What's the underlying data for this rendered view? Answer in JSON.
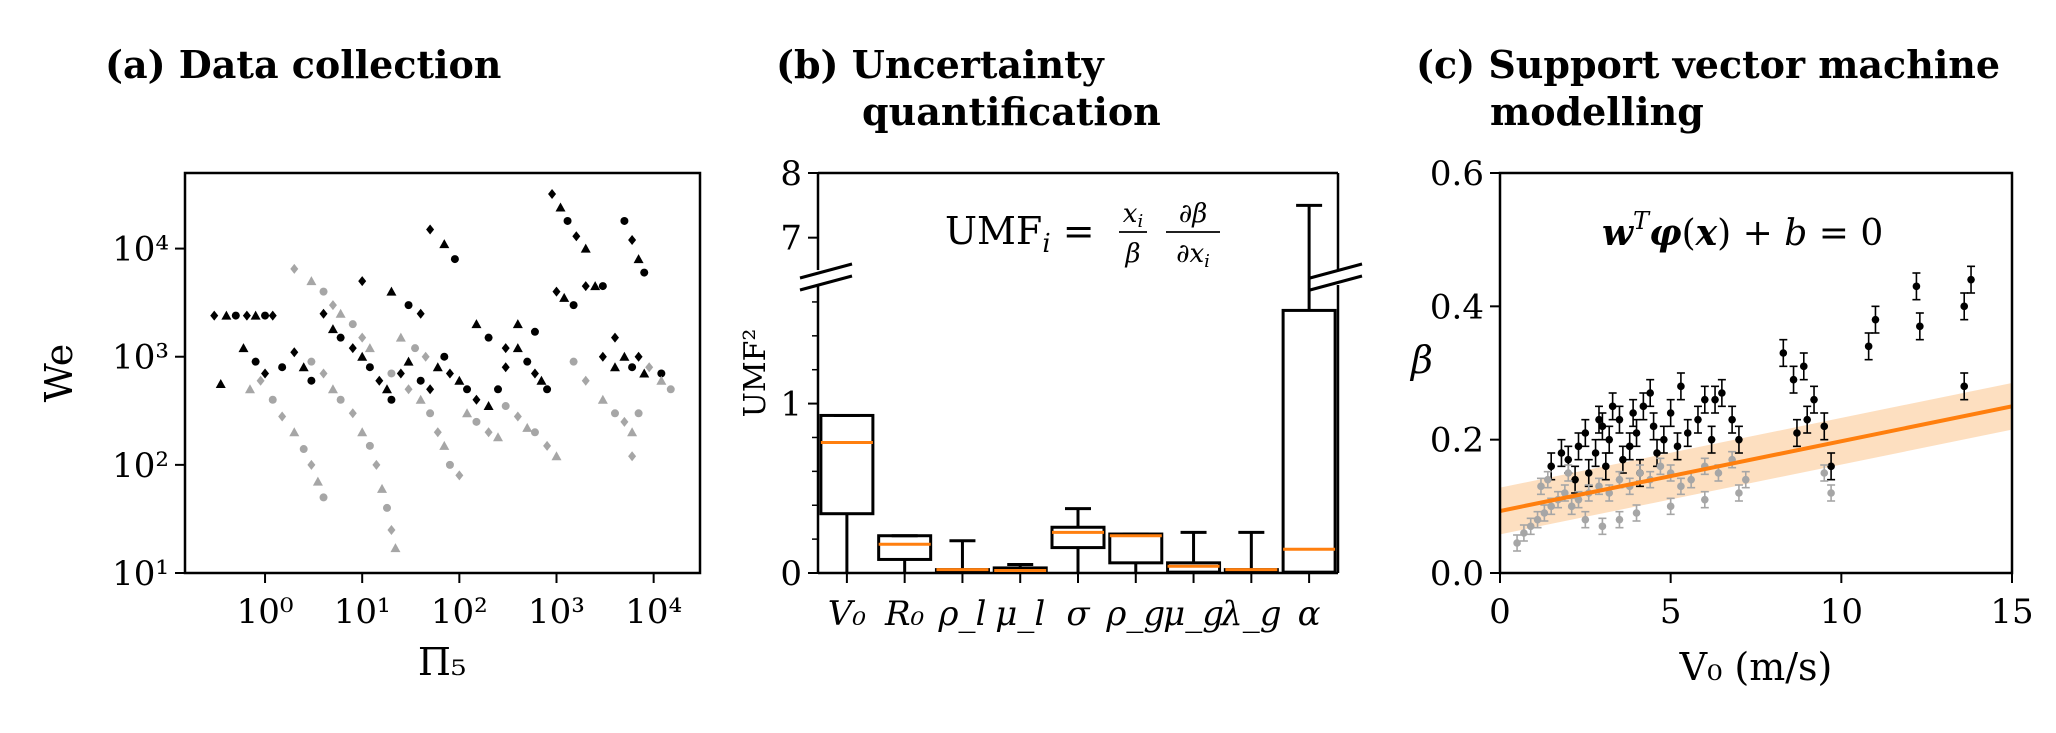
{
  "panels": {
    "a": {
      "title_line1": "(a) Data collection",
      "title_line2": ""
    },
    "b": {
      "title_line1": "(b) Uncertainty",
      "title_line2": "quantification"
    },
    "c": {
      "title_line1": "(c) Support vector machine",
      "title_line2": "modelling"
    }
  },
  "colors": {
    "black": "#000000",
    "gray": "#a6a6a6",
    "orange": "#ff7f0e",
    "band": "#fdd9b5"
  },
  "chart_data": [
    {
      "type": "scatter",
      "title": "(a) Data collection",
      "xlabel": "Π₅",
      "ylabel": "We",
      "xscale": "log",
      "yscale": "log",
      "xlim": [
        0.15,
        30000
      ],
      "ylim": [
        10,
        50000
      ],
      "xticks": [
        "10⁰",
        "10¹",
        "10²",
        "10³",
        "10⁴"
      ],
      "yticks": [
        "10¹",
        "10²",
        "10³",
        "10⁴"
      ],
      "series": [
        {
          "color": "black",
          "points": [
            [
              0.3,
              2400
            ],
            [
              0.4,
              2400
            ],
            [
              0.5,
              2400
            ],
            [
              0.65,
              2400
            ],
            [
              0.8,
              2400
            ],
            [
              1.0,
              2400
            ],
            [
              1.2,
              2400
            ],
            [
              0.6,
              1200
            ],
            [
              0.8,
              900
            ],
            [
              1.0,
              700
            ],
            [
              0.35,
              560
            ],
            [
              1.5,
              800
            ],
            [
              2.0,
              1100
            ],
            [
              2.5,
              800
            ],
            [
              3,
              600
            ],
            [
              4,
              2500
            ],
            [
              5,
              1800
            ],
            [
              6,
              1500
            ],
            [
              8,
              1200
            ],
            [
              10,
              1000
            ],
            [
              12,
              800
            ],
            [
              15,
              600
            ],
            [
              18,
              500
            ],
            [
              20,
              400
            ],
            [
              25,
              700
            ],
            [
              30,
              900
            ],
            [
              40,
              600
            ],
            [
              50,
              500
            ],
            [
              60,
              800
            ],
            [
              70,
              1000
            ],
            [
              80,
              700
            ],
            [
              100,
              600
            ],
            [
              120,
              500
            ],
            [
              150,
              400
            ],
            [
              200,
              350
            ],
            [
              250,
              500
            ],
            [
              300,
              800
            ],
            [
              400,
              1200
            ],
            [
              500,
              900
            ],
            [
              600,
              700
            ],
            [
              700,
              600
            ],
            [
              800,
              500
            ],
            [
              1000,
              4000
            ],
            [
              1200,
              3500
            ],
            [
              1500,
              3000
            ],
            [
              2000,
              4500
            ],
            [
              2500,
              4500
            ],
            [
              3000,
              4500
            ],
            [
              4000,
              1500
            ],
            [
              5000,
              1000
            ],
            [
              6000,
              800
            ],
            [
              7000,
              1000
            ],
            [
              8000,
              700
            ],
            [
              12000,
              700
            ],
            [
              50,
              15000
            ],
            [
              70,
              11000
            ],
            [
              90,
              8000
            ],
            [
              900,
              32000
            ],
            [
              1100,
              24000
            ],
            [
              1300,
              18000
            ],
            [
              1600,
              13000
            ],
            [
              2000,
              10000
            ],
            [
              5000,
              18000
            ],
            [
              6000,
              12000
            ],
            [
              7000,
              8000
            ],
            [
              8000,
              6000
            ],
            [
              10,
              5000
            ],
            [
              20,
              4000
            ],
            [
              30,
              3000
            ],
            [
              40,
              2500
            ],
            [
              150,
              2000
            ],
            [
              200,
              1500
            ],
            [
              300,
              1200
            ],
            [
              400,
              2000
            ],
            [
              600,
              1700
            ],
            [
              3000,
              1000
            ],
            [
              4000,
              800
            ]
          ]
        },
        {
          "color": "gray",
          "points": [
            [
              2,
              6500
            ],
            [
              3,
              5000
            ],
            [
              4,
              4000
            ],
            [
              5,
              3000
            ],
            [
              6,
              2500
            ],
            [
              8,
              2000
            ],
            [
              10,
              1500
            ],
            [
              12,
              1200
            ],
            [
              3,
              900
            ],
            [
              4,
              700
            ],
            [
              5,
              500
            ],
            [
              6,
              400
            ],
            [
              8,
              300
            ],
            [
              10,
              200
            ],
            [
              12,
              150
            ],
            [
              14,
              100
            ],
            [
              16,
              60
            ],
            [
              18,
              40
            ],
            [
              20,
              25
            ],
            [
              22,
              17
            ],
            [
              1.2,
              400
            ],
            [
              1.5,
              280
            ],
            [
              2,
              200
            ],
            [
              2.5,
              140
            ],
            [
              3,
              100
            ],
            [
              3.5,
              70
            ],
            [
              4,
              50
            ],
            [
              0.9,
              600
            ],
            [
              0.7,
              500
            ],
            [
              20,
              700
            ],
            [
              30,
              500
            ],
            [
              40,
              400
            ],
            [
              50,
              300
            ],
            [
              60,
              200
            ],
            [
              70,
              150
            ],
            [
              80,
              100
            ],
            [
              100,
              80
            ],
            [
              120,
              300
            ],
            [
              150,
              250
            ],
            [
              200,
              200
            ],
            [
              250,
              180
            ],
            [
              300,
              350
            ],
            [
              400,
              280
            ],
            [
              500,
              220
            ],
            [
              600,
              200
            ],
            [
              800,
              150
            ],
            [
              1000,
              120
            ],
            [
              1500,
              900
            ],
            [
              2000,
              600
            ],
            [
              3000,
              400
            ],
            [
              4000,
              300
            ],
            [
              5000,
              250
            ],
            [
              6000,
              200
            ],
            [
              7000,
              300
            ],
            [
              9000,
              800
            ],
            [
              12000,
              600
            ],
            [
              15000,
              500
            ],
            [
              6000,
              120
            ],
            [
              25,
              1500
            ],
            [
              35,
              1200
            ],
            [
              45,
              1000
            ]
          ]
        }
      ]
    },
    {
      "type": "box",
      "title": "(b) Uncertainty quantification",
      "ylabel": "UMF²",
      "annotation": "UMF_i = (x_i/β) ∂β/∂x_i",
      "yticks": [
        "0",
        "1",
        "7",
        "8"
      ],
      "categories": [
        "V₀",
        "R₀",
        "ρ_l",
        "μ_l",
        "σ",
        "ρ_g",
        "μ_g",
        "λ_g",
        "α"
      ],
      "boxes": [
        {
          "whislo": 0,
          "q1": 0.35,
          "med": 0.77,
          "q3": 0.93,
          "whishi": 0.93
        },
        {
          "whislo": 0,
          "q1": 0.08,
          "med": 0.17,
          "q3": 0.22,
          "whishi": 0.22
        },
        {
          "whislo": 0,
          "q1": 0.005,
          "med": 0.02,
          "q3": 0.02,
          "whishi": 0.19
        },
        {
          "whislo": 0,
          "q1": 0.005,
          "med": 0.015,
          "q3": 0.03,
          "whishi": 0.05
        },
        {
          "whislo": 0,
          "q1": 0.15,
          "med": 0.24,
          "q3": 0.27,
          "whishi": 0.38
        },
        {
          "whislo": 0,
          "q1": 0.06,
          "med": 0.22,
          "q3": 0.23,
          "whishi": 0.23
        },
        {
          "whislo": 0,
          "q1": 0.005,
          "med": 0.04,
          "q3": 0.06,
          "whishi": 0.24
        },
        {
          "whislo": 0,
          "q1": 0.005,
          "med": 0.02,
          "q3": 0.02,
          "whishi": 0.24
        },
        {
          "whislo": 0,
          "q1": 0.005,
          "med": 0.14,
          "q3": 1.55,
          "whishi": 7.5
        }
      ]
    },
    {
      "type": "scatter",
      "title": "(c) Support vector machine modelling",
      "xlabel": "V₀ (m/s)",
      "ylabel": "β",
      "annotation": "wᵀφ(x) + b = 0",
      "xlim": [
        0,
        15
      ],
      "ylim": [
        0,
        0.6
      ],
      "xticks": [
        "0",
        "5",
        "10",
        "15"
      ],
      "yticks": [
        "0.0",
        "0.2",
        "0.4",
        "0.6"
      ],
      "decision_line": {
        "x": [
          0,
          15
        ],
        "y": [
          0.093,
          0.25
        ],
        "band_halfwidth": 0.035
      },
      "series": [
        {
          "color": "black",
          "points": [
            [
              2,
              0.17
            ],
            [
              2.3,
              0.19
            ],
            [
              2.5,
              0.21
            ],
            [
              2.8,
              0.18
            ],
            [
              3,
              0.22
            ],
            [
              3.2,
              0.2
            ],
            [
              3.5,
              0.23
            ],
            [
              3.8,
              0.19
            ],
            [
              4,
              0.21
            ],
            [
              4.2,
              0.25
            ],
            [
              4.5,
              0.22
            ],
            [
              4.8,
              0.2
            ],
            [
              5,
              0.24
            ],
            [
              5.2,
              0.19
            ],
            [
              5.5,
              0.21
            ],
            [
              5.8,
              0.23
            ],
            [
              6,
              0.26
            ],
            [
              6.2,
              0.2
            ],
            [
              6.5,
              0.27
            ],
            [
              6.8,
              0.23
            ],
            [
              7,
              0.2
            ],
            [
              2.2,
              0.14
            ],
            [
              2.6,
              0.15
            ],
            [
              3.1,
              0.16
            ],
            [
              3.6,
              0.17
            ],
            [
              4.1,
              0.15
            ],
            [
              4.6,
              0.18
            ],
            [
              8.3,
              0.33
            ],
            [
              8.6,
              0.29
            ],
            [
              8.9,
              0.31
            ],
            [
              9,
              0.23
            ],
            [
              9.2,
              0.26
            ],
            [
              9.5,
              0.22
            ],
            [
              9.7,
              0.16
            ],
            [
              8.7,
              0.21
            ],
            [
              10.8,
              0.34
            ],
            [
              11,
              0.38
            ],
            [
              12.2,
              0.43
            ],
            [
              12.3,
              0.37
            ],
            [
              13.6,
              0.4
            ],
            [
              13.8,
              0.44
            ],
            [
              13.6,
              0.28
            ],
            [
              1.5,
              0.16
            ],
            [
              1.8,
              0.18
            ],
            [
              3.3,
              0.25
            ],
            [
              4.4,
              0.27
            ],
            [
              5.3,
              0.28
            ],
            [
              6.3,
              0.26
            ],
            [
              3.9,
              0.24
            ],
            [
              2.9,
              0.23
            ]
          ]
        },
        {
          "color": "gray",
          "points": [
            [
              0.5,
              0.045
            ],
            [
              0.7,
              0.06
            ],
            [
              0.9,
              0.07
            ],
            [
              1.1,
              0.08
            ],
            [
              1.3,
              0.09
            ],
            [
              1.5,
              0.1
            ],
            [
              1.7,
              0.11
            ],
            [
              1.9,
              0.12
            ],
            [
              2.1,
              0.1
            ],
            [
              2.3,
              0.11
            ],
            [
              2.6,
              0.12
            ],
            [
              2.9,
              0.13
            ],
            [
              3.2,
              0.12
            ],
            [
              3.5,
              0.14
            ],
            [
              3.8,
              0.13
            ],
            [
              4.1,
              0.15
            ],
            [
              4.4,
              0.14
            ],
            [
              4.7,
              0.16
            ],
            [
              5,
              0.15
            ],
            [
              5.3,
              0.13
            ],
            [
              5.6,
              0.14
            ],
            [
              6,
              0.16
            ],
            [
              6.4,
              0.15
            ],
            [
              6.8,
              0.17
            ],
            [
              7.2,
              0.14
            ],
            [
              2.5,
              0.08
            ],
            [
              3,
              0.07
            ],
            [
              3.5,
              0.08
            ],
            [
              4,
              0.09
            ],
            [
              5,
              0.1
            ],
            [
              6,
              0.11
            ],
            [
              7,
              0.12
            ],
            [
              9.7,
              0.12
            ],
            [
              9.5,
              0.15
            ],
            [
              1.2,
              0.13
            ],
            [
              1.4,
              0.14
            ],
            [
              2,
              0.15
            ]
          ]
        }
      ]
    }
  ]
}
